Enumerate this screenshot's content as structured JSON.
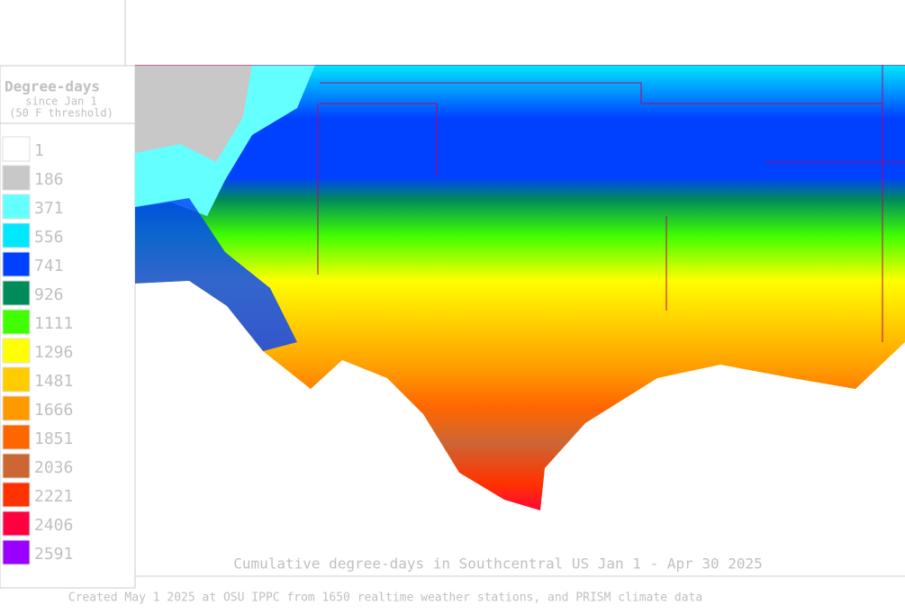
{
  "legend": {
    "title": "Degree-days",
    "subtitle": "since Jan 1",
    "threshold": "(50 F threshold)",
    "items": [
      {
        "value": 1,
        "color": "#ffffff"
      },
      {
        "value": 186,
        "color": "#c8c8c8"
      },
      {
        "value": 371,
        "color": "#64ffff"
      },
      {
        "value": 556,
        "color": "#00e8ff"
      },
      {
        "value": 741,
        "color": "#0040ff"
      },
      {
        "value": 926,
        "color": "#008c5a"
      },
      {
        "value": 1111,
        "color": "#40ff00"
      },
      {
        "value": 1296,
        "color": "#ffff00"
      },
      {
        "value": 1481,
        "color": "#ffcc00"
      },
      {
        "value": 1666,
        "color": "#ff9900"
      },
      {
        "value": 1851,
        "color": "#ff6600"
      },
      {
        "value": 2036,
        "color": "#cc6633"
      },
      {
        "value": 2221,
        "color": "#ff3300"
      },
      {
        "value": 2406,
        "color": "#ff0040"
      },
      {
        "value": 2591,
        "color": "#9900ff"
      }
    ]
  },
  "map": {
    "title": "Cumulative degree-days in Southcentral US Jan 1 - Apr 30 2025"
  },
  "footer": {
    "credit": "Created May 1 2025 at OSU IPPC from 1650 realtime weather stations, and PRISM climate data"
  }
}
